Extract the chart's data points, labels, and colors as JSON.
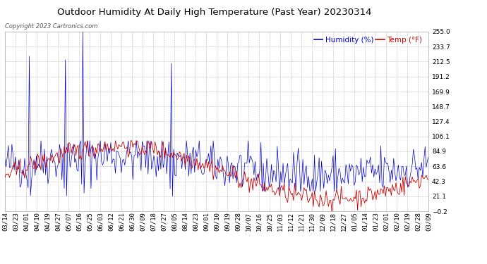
{
  "title": "Outdoor Humidity At Daily High Temperature (Past Year) 20230314",
  "copyright": "Copyright 2023 Cartronics.com",
  "legend_humidity": "Humidity (%)",
  "legend_temp": "Temp (°F)",
  "ylabel_right_ticks": [
    255.0,
    233.7,
    212.5,
    191.2,
    169.9,
    148.7,
    127.4,
    106.1,
    84.9,
    63.6,
    42.3,
    21.1,
    -0.2
  ],
  "x_labels": [
    "03/14",
    "03/23",
    "04/01",
    "04/10",
    "04/19",
    "04/27",
    "05/07",
    "05/16",
    "05/25",
    "06/03",
    "06/12",
    "06/21",
    "06/30",
    "07/09",
    "07/18",
    "07/27",
    "08/05",
    "08/14",
    "08/23",
    "09/01",
    "09/10",
    "09/19",
    "09/28",
    "10/07",
    "10/16",
    "10/25",
    "11/03",
    "11/12",
    "11/21",
    "11/30",
    "12/09",
    "12/18",
    "12/27",
    "01/05",
    "01/14",
    "01/23",
    "02/01",
    "02/10",
    "02/19",
    "02/28",
    "03/09"
  ],
  "ymin": -0.2,
  "ymax": 255.0,
  "bg_color": "#ffffff",
  "grid_color": "#bbbbbb",
  "humidity_color": "#0000cc",
  "temp_color": "#cc0000",
  "title_fontsize": 9.5,
  "tick_fontsize": 6.5,
  "copyright_fontsize": 6,
  "legend_fontsize": 7.5
}
